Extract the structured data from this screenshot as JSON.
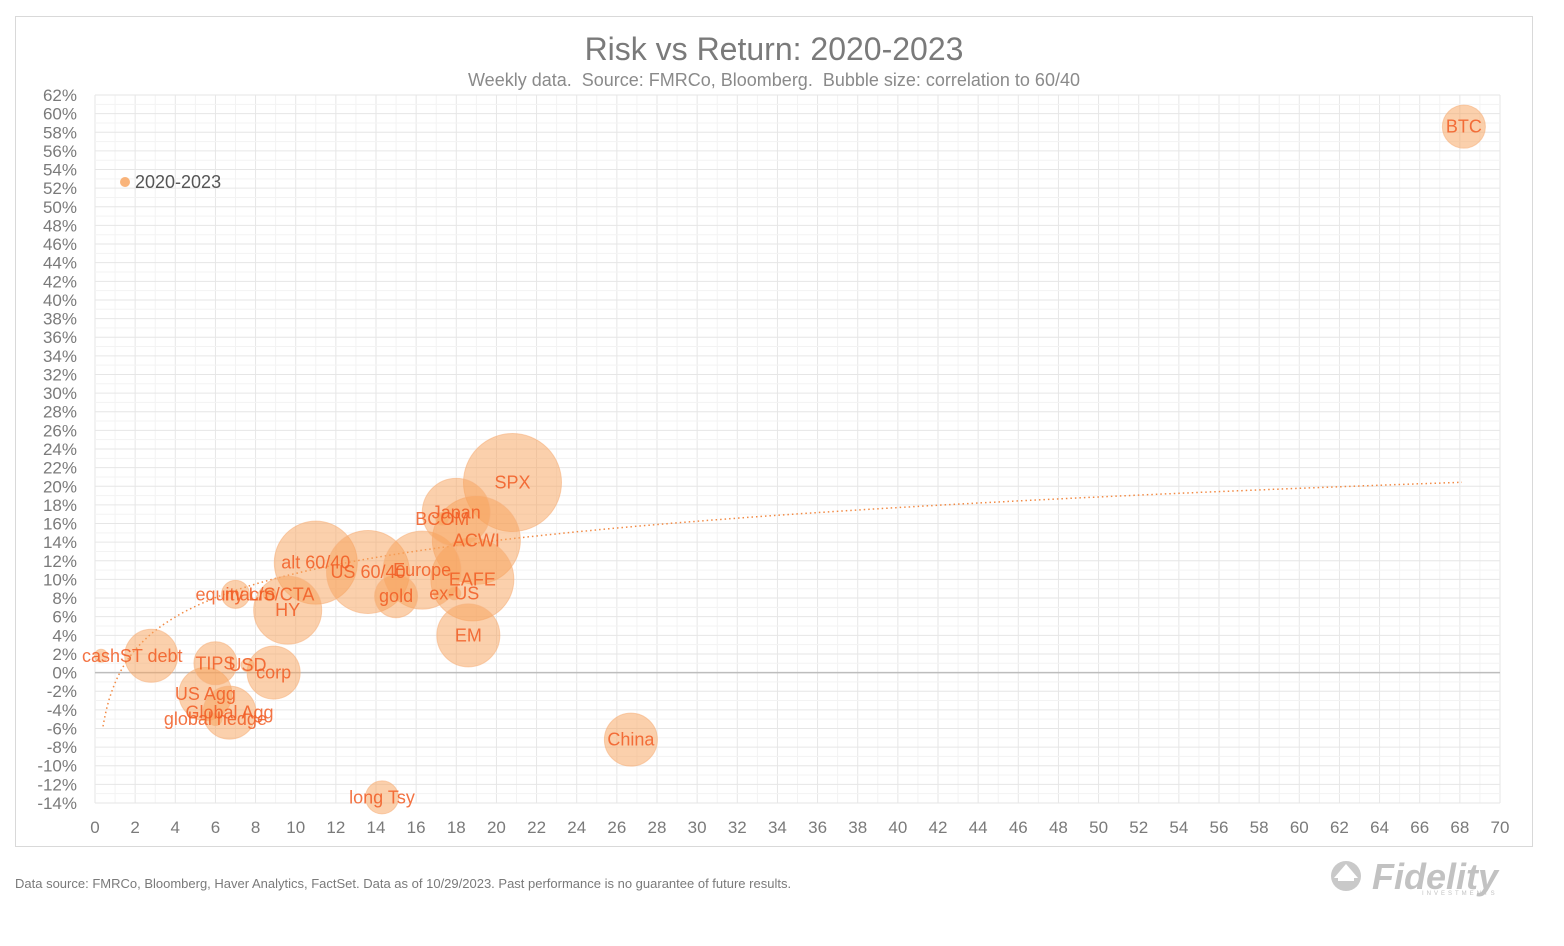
{
  "chart_data": {
    "type": "scatter",
    "title": "Risk vs Return: 2020-2023",
    "subtitle": "Weekly data.  Source: FMRCo, Bloomberg.  Bubble size: correlation to 60/40",
    "xlabel": "",
    "ylabel": "",
    "xlim": [
      0,
      70
    ],
    "ylim": [
      -14,
      62
    ],
    "x_ticks": [
      "0",
      "2",
      "4",
      "6",
      "8",
      "10",
      "12",
      "14",
      "16",
      "18",
      "20",
      "22",
      "24",
      "26",
      "28",
      "30",
      "32",
      "34",
      "36",
      "38",
      "40",
      "42",
      "44",
      "46",
      "48",
      "50",
      "52",
      "54",
      "56",
      "58",
      "60",
      "62",
      "64",
      "66",
      "68",
      "70"
    ],
    "y_ticks": [
      "62%",
      "60%",
      "58%",
      "56%",
      "54%",
      "52%",
      "50%",
      "48%",
      "46%",
      "44%",
      "42%",
      "40%",
      "38%",
      "36%",
      "34%",
      "32%",
      "30%",
      "28%",
      "26%",
      "24%",
      "22%",
      "20%",
      "18%",
      "16%",
      "14%",
      "12%",
      "10%",
      "8%",
      "6%",
      "4%",
      "2%",
      "0%",
      "-2%",
      "-4%",
      "-6%",
      "-8%",
      "-10%",
      "-12%",
      "-14%"
    ],
    "grid": true,
    "legend": {
      "label": "2020-2023",
      "position": "top-left"
    },
    "colors": {
      "bubble": "#f7a15a",
      "label": "#f15a22",
      "trend": "#f28a44"
    },
    "trendline": "logarithmic",
    "series": [
      {
        "name": "2020-2023",
        "points": [
          {
            "label": "cash",
            "x": 0.3,
            "y": 1.8,
            "size": 0.05
          },
          {
            "label": "ST debt",
            "x": 2.8,
            "y": 1.8,
            "size": 0.45
          },
          {
            "label": "TIPS",
            "x": 6.0,
            "y": 1.0,
            "size": 0.35
          },
          {
            "label": "USD",
            "x": 7.6,
            "y": 0.8,
            "size": 0.05
          },
          {
            "label": "corp",
            "x": 8.9,
            "y": 0.0,
            "size": 0.45
          },
          {
            "label": "US Agg",
            "x": 5.5,
            "y": -2.3,
            "size": 0.45
          },
          {
            "label": "global hedge",
            "x": 6.0,
            "y": -5.0,
            "size": 0.05
          },
          {
            "label": "Global Agg",
            "x": 6.7,
            "y": -4.3,
            "size": 0.45
          },
          {
            "label": "equity L/S",
            "x": 7.0,
            "y": 8.4,
            "size": 0.2
          },
          {
            "label": "macro/CTA",
            "x": 8.7,
            "y": 8.4,
            "size": 0.05
          },
          {
            "label": "HY",
            "x": 9.6,
            "y": 6.7,
            "size": 0.6
          },
          {
            "label": "alt 60/40",
            "x": 11.0,
            "y": 11.8,
            "size": 0.75
          },
          {
            "label": "US 60/40",
            "x": 13.6,
            "y": 10.8,
            "size": 0.75
          },
          {
            "label": "gold",
            "x": 15.0,
            "y": 8.2,
            "size": 0.35
          },
          {
            "label": "Europe",
            "x": 16.3,
            "y": 11.0,
            "size": 0.7
          },
          {
            "label": "Japan",
            "x": 18.0,
            "y": 17.2,
            "size": 0.6
          },
          {
            "label": "BCOM",
            "x": 17.3,
            "y": 16.5,
            "size": 0.05
          },
          {
            "label": "ACWI",
            "x": 19.0,
            "y": 14.2,
            "size": 0.8
          },
          {
            "label": "EAFE",
            "x": 18.8,
            "y": 10.0,
            "size": 0.75
          },
          {
            "label": "ex-US",
            "x": 17.9,
            "y": 8.5,
            "size": 0.05
          },
          {
            "label": "EM",
            "x": 18.6,
            "y": 4.0,
            "size": 0.55
          },
          {
            "label": "SPX",
            "x": 20.8,
            "y": 20.4,
            "size": 0.9
          },
          {
            "label": "China",
            "x": 26.7,
            "y": -7.2,
            "size": 0.45
          },
          {
            "label": "long Tsy",
            "x": 14.3,
            "y": -13.4,
            "size": 0.25
          },
          {
            "label": "BTC",
            "x": 68.2,
            "y": 58.6,
            "size": 0.35
          }
        ]
      }
    ]
  },
  "footnote": "Data source: FMRCo, Bloomberg, Haver Analytics, FactSet. Data as of 10/29/2023. Past performance is no guarantee of future results.",
  "logo": {
    "text": "Fidelity",
    "sub": "INVESTMENTS"
  }
}
